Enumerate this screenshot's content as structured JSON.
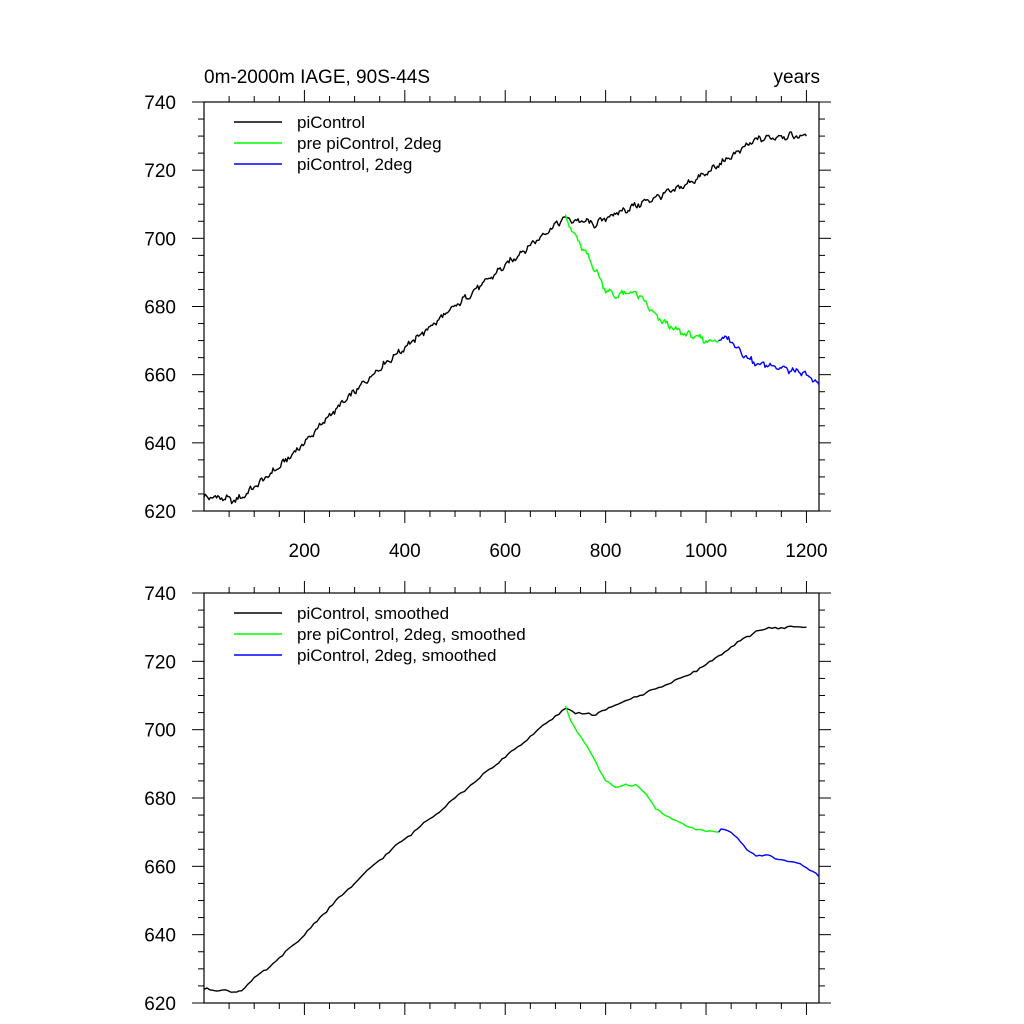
{
  "chart_data": [
    {
      "type": "line",
      "title": "0m-2000m IAGE, 90S-44S",
      "units": "years",
      "xlim": [
        0,
        1225
      ],
      "ylim": [
        620,
        740
      ],
      "yticks": [
        "620",
        "640",
        "660",
        "680",
        "700",
        "720",
        "740"
      ],
      "xticks": [
        "200",
        "400",
        "600",
        "800",
        "1000",
        "1200"
      ],
      "legend": [
        "piControl",
        "pre piControl, 2deg",
        "piControl, 2deg"
      ],
      "series": [
        {
          "name": "piControl",
          "color": "#000000",
          "x": [
            0,
            30,
            60,
            75,
            100,
            150,
            200,
            250,
            300,
            350,
            400,
            450,
            500,
            550,
            600,
            650,
            700,
            720,
            740,
            760,
            780,
            800,
            850,
            900,
            950,
            1000,
            1050,
            1100,
            1150,
            1200
          ],
          "y": [
            624,
            624,
            623,
            624,
            627,
            633,
            640,
            648,
            655,
            662,
            668,
            674,
            680,
            686,
            692,
            698,
            704,
            706,
            705,
            705,
            704,
            706,
            709,
            712,
            715,
            719,
            724,
            729,
            730,
            730
          ]
        },
        {
          "name": "pre piControl, 2deg",
          "color": "#00ff00",
          "x": [
            720,
            730,
            750,
            775,
            800,
            820,
            840,
            860,
            880,
            900,
            920,
            940,
            960,
            980,
            1000,
            1025
          ],
          "y": [
            707,
            703,
            698,
            692,
            685,
            683,
            684,
            684,
            681,
            677,
            675,
            673,
            672,
            671,
            670,
            670
          ]
        },
        {
          "name": "piControl, 2deg",
          "color": "#0000ff",
          "x": [
            1025,
            1030,
            1050,
            1075,
            1100,
            1125,
            1150,
            1175,
            1200,
            1225
          ],
          "y": [
            670,
            671,
            670,
            666,
            663,
            663,
            662,
            661,
            660,
            657
          ]
        }
      ]
    },
    {
      "type": "line",
      "title": "",
      "xlim": [
        0,
        1225
      ],
      "ylim": [
        620,
        740
      ],
      "yticks": [
        "620",
        "640",
        "660",
        "680",
        "700",
        "720",
        "740"
      ],
      "legend": [
        "piControl, smoothed",
        "pre piControl, 2deg, smoothed",
        "piControl, 2deg, smoothed"
      ],
      "series": [
        {
          "name": "piControl, smoothed",
          "color": "#000000",
          "x": [
            0,
            30,
            60,
            75,
            100,
            150,
            200,
            250,
            300,
            350,
            400,
            450,
            500,
            550,
            600,
            650,
            700,
            720,
            740,
            760,
            780,
            800,
            850,
            900,
            950,
            1000,
            1050,
            1100,
            1150,
            1200
          ],
          "y": [
            624,
            624,
            623,
            624,
            627,
            633,
            640,
            648,
            655,
            662,
            668,
            674,
            680,
            686,
            692,
            698,
            704,
            706,
            705,
            705,
            704,
            706,
            709,
            712,
            715,
            719,
            724,
            729,
            730,
            730
          ]
        },
        {
          "name": "pre piControl, 2deg, smoothed",
          "color": "#00ff00",
          "x": [
            720,
            730,
            750,
            775,
            800,
            820,
            840,
            860,
            880,
            900,
            920,
            940,
            960,
            980,
            1000,
            1025
          ],
          "y": [
            707,
            703,
            698,
            692,
            685,
            683,
            684,
            684,
            681,
            677,
            675,
            673,
            672,
            671,
            670,
            670
          ]
        },
        {
          "name": "piControl, 2deg, smoothed",
          "color": "#0000ff",
          "x": [
            1025,
            1030,
            1050,
            1075,
            1100,
            1125,
            1150,
            1175,
            1200,
            1225
          ],
          "y": [
            670,
            671,
            670,
            666,
            663,
            663,
            662,
            661,
            660,
            657
          ]
        }
      ]
    }
  ]
}
